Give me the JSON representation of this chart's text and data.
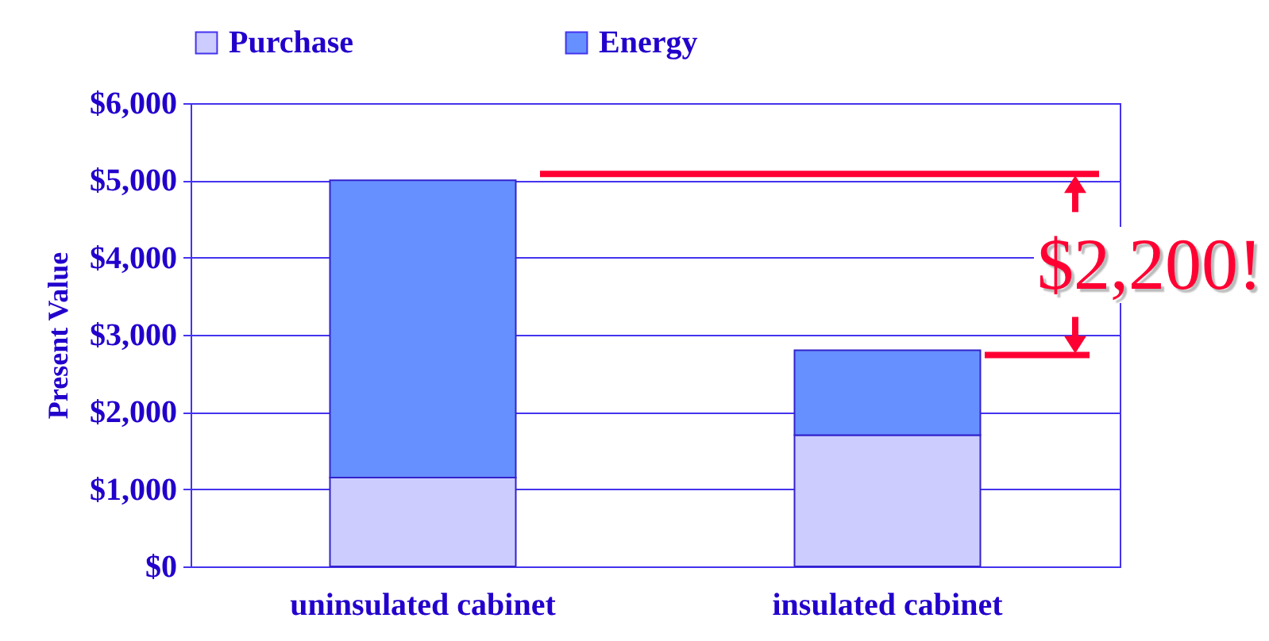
{
  "chart_data": {
    "type": "bar",
    "stacked": true,
    "ylabel": "Present Value",
    "categories": [
      "uninsulated cabinet",
      "insulated cabinet"
    ],
    "series": [
      {
        "name": "Purchase",
        "color": "#ccccff",
        "values": [
          1150,
          1700
        ]
      },
      {
        "name": "Energy",
        "color": "#6690ff",
        "values": [
          3850,
          1100
        ]
      }
    ],
    "ylim": [
      0,
      6000
    ],
    "yticks": [
      {
        "value": 0,
        "label": "$0"
      },
      {
        "value": 1000,
        "label": "$1,000"
      },
      {
        "value": 2000,
        "label": "$2,000"
      },
      {
        "value": 3000,
        "label": "$3,000"
      },
      {
        "value": 4000,
        "label": "$4,000"
      },
      {
        "value": 5000,
        "label": "$5,000"
      },
      {
        "value": 6000,
        "label": "$6,000"
      }
    ],
    "grid": "y",
    "legend": "top",
    "annotations": [
      "$2,200!"
    ]
  }
}
